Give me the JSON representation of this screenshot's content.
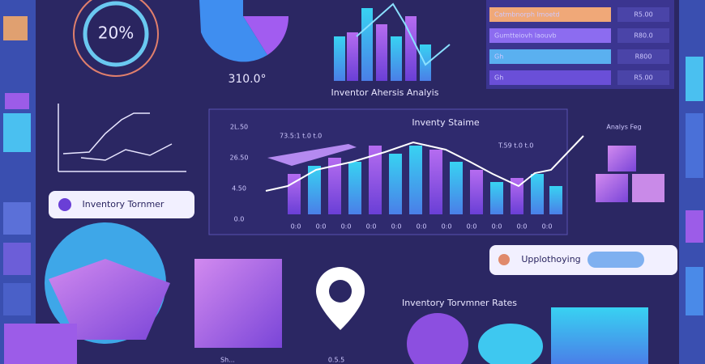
{
  "gauge": {
    "label": "20%"
  },
  "pie": {
    "label": "310.0°"
  },
  "top_chart": {
    "title": "Inventor Ahersis Analyis"
  },
  "table": {
    "rows": [
      [
        "Catmbnorph Imoetd",
        "R5.00"
      ],
      [
        "Gumtteiovh laouvb",
        "R80.0"
      ],
      [
        "Gh",
        "R800"
      ],
      [
        "Gh",
        "R5.00"
      ]
    ]
  },
  "button": {
    "label": "Inventory Tornmer"
  },
  "panel": {
    "title": "Inventy Staime",
    "note_left": "73.5:1 t.0 t.0",
    "note_right": "T.59 t.0 t.0",
    "y_labels": [
      "2L.50",
      "26.50",
      "4.50",
      "0.0"
    ],
    "x_labels": [
      "0:0",
      "0:0",
      "0:0",
      "0:0",
      "0:0",
      "0:0",
      "0:0",
      "0:0",
      "0:0",
      "0:0",
      "0:0"
    ]
  },
  "side_note": "Analys Feg",
  "search": {
    "label": "Upplothoying"
  },
  "rates": {
    "title": "Inventory Torvmner Rates"
  },
  "footer": {
    "left": "Sh...",
    "center": "0.5.5"
  }
}
